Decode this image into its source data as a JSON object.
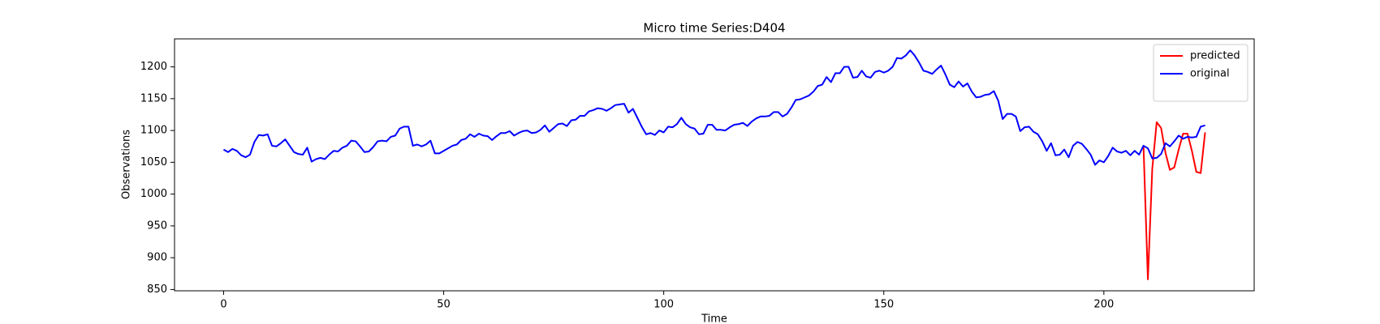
{
  "chart_data": {
    "type": "line",
    "title": "Micro time Series:D404",
    "x_label": "Time",
    "y_label": "Observations",
    "x": [
      0,
      1,
      2,
      3,
      4,
      5,
      6,
      7,
      8,
      9,
      10,
      11,
      12,
      13,
      14,
      15,
      16,
      17,
      18,
      19,
      20,
      21,
      22,
      23,
      24,
      25,
      26,
      27,
      28,
      29,
      30,
      31,
      32,
      33,
      34,
      35,
      36,
      37,
      38,
      39,
      40,
      41,
      42,
      43,
      44,
      45,
      46,
      47,
      48,
      49,
      50,
      51,
      52,
      53,
      54,
      55,
      56,
      57,
      58,
      59,
      60,
      61,
      62,
      63,
      64,
      65,
      66,
      67,
      68,
      69,
      70,
      71,
      72,
      73,
      74,
      75,
      76,
      77,
      78,
      79,
      80,
      81,
      82,
      83,
      84,
      85,
      86,
      87,
      88,
      89,
      90,
      91,
      92,
      93,
      94,
      95,
      96,
      97,
      98,
      99,
      100,
      101,
      102,
      103,
      104,
      105,
      106,
      107,
      108,
      109,
      110,
      111,
      112,
      113,
      114,
      115,
      116,
      117,
      118,
      119,
      120,
      121,
      122,
      123,
      124,
      125,
      126,
      127,
      128,
      129,
      130,
      131,
      132,
      133,
      134,
      135,
      136,
      137,
      138,
      139,
      140,
      141,
      142,
      143,
      144,
      145,
      146,
      147,
      148,
      149,
      150,
      151,
      152,
      153,
      154,
      155,
      156,
      157,
      158,
      159,
      160,
      161,
      162,
      163,
      164,
      165,
      166,
      167,
      168,
      169,
      170,
      171,
      172,
      173,
      174,
      175,
      176,
      177,
      178,
      179,
      180,
      181,
      182,
      183,
      184,
      185,
      186,
      187,
      188,
      189,
      190,
      191,
      192,
      193,
      194,
      195,
      196,
      197,
      198,
      199,
      200,
      201,
      202,
      203,
      204,
      205,
      206,
      207,
      208,
      209,
      210,
      211,
      212,
      213,
      214,
      215,
      216,
      217,
      218,
      219,
      220,
      221,
      222,
      223
    ],
    "series": [
      {
        "name": "predicted",
        "color": "#ff0000",
        "values": [
          null,
          null,
          null,
          null,
          null,
          null,
          null,
          null,
          null,
          null,
          null,
          null,
          null,
          null,
          null,
          null,
          null,
          null,
          null,
          null,
          null,
          null,
          null,
          null,
          null,
          null,
          null,
          null,
          null,
          null,
          null,
          null,
          null,
          null,
          null,
          null,
          null,
          null,
          null,
          null,
          null,
          null,
          null,
          null,
          null,
          null,
          null,
          null,
          null,
          null,
          null,
          null,
          null,
          null,
          null,
          null,
          null,
          null,
          null,
          null,
          null,
          null,
          null,
          null,
          null,
          null,
          null,
          null,
          null,
          null,
          null,
          null,
          null,
          null,
          null,
          null,
          null,
          null,
          null,
          null,
          null,
          null,
          null,
          null,
          null,
          null,
          null,
          null,
          null,
          null,
          null,
          null,
          null,
          null,
          null,
          null,
          null,
          null,
          null,
          null,
          null,
          null,
          null,
          null,
          null,
          null,
          null,
          null,
          null,
          null,
          null,
          null,
          null,
          null,
          null,
          null,
          null,
          null,
          null,
          null,
          null,
          null,
          null,
          null,
          null,
          null,
          null,
          null,
          null,
          null,
          null,
          null,
          null,
          null,
          null,
          null,
          null,
          null,
          null,
          null,
          null,
          null,
          null,
          null,
          null,
          null,
          null,
          null,
          null,
          null,
          null,
          null,
          null,
          null,
          null,
          null,
          null,
          null,
          null,
          null,
          null,
          null,
          null,
          null,
          null,
          null,
          null,
          null,
          null,
          null,
          null,
          null,
          null,
          null,
          null,
          null,
          null,
          null,
          null,
          null,
          null,
          null,
          null,
          null,
          null,
          null,
          null,
          null,
          null,
          null,
          null,
          null,
          null,
          null,
          null,
          null,
          null,
          null,
          null,
          null,
          null,
          null,
          null,
          null,
          null,
          null,
          null,
          null,
          null,
          1076,
          866,
          1040,
          1113,
          1104,
          1065,
          1038,
          1042,
          1070,
          1095,
          1095,
          1068,
          1035,
          1033,
          1097
        ]
      },
      {
        "name": "original",
        "color": "#0000ff",
        "values": [
          1070,
          1066,
          1071,
          1068,
          1061,
          1058,
          1062,
          1082,
          1093,
          1092,
          1094,
          1076,
          1075,
          1080,
          1086,
          1076,
          1066,
          1063,
          1062,
          1073,
          1051,
          1055,
          1057,
          1055,
          1062,
          1068,
          1067,
          1073,
          1076,
          1084,
          1083,
          1075,
          1066,
          1067,
          1074,
          1083,
          1084,
          1083,
          1090,
          1092,
          1103,
          1106,
          1106,
          1076,
          1078,
          1075,
          1078,
          1084,
          1064,
          1064,
          1068,
          1072,
          1076,
          1078,
          1085,
          1087,
          1094,
          1090,
          1095,
          1092,
          1091,
          1085,
          1091,
          1096,
          1096,
          1099,
          1092,
          1096,
          1099,
          1100,
          1096,
          1097,
          1101,
          1108,
          1098,
          1104,
          1110,
          1111,
          1107,
          1116,
          1117,
          1123,
          1123,
          1130,
          1132,
          1135,
          1134,
          1131,
          1135,
          1140,
          1141,
          1142,
          1128,
          1134,
          1120,
          1106,
          1094,
          1096,
          1093,
          1100,
          1097,
          1106,
          1105,
          1110,
          1120,
          1110,
          1105,
          1103,
          1094,
          1095,
          1109,
          1109,
          1101,
          1101,
          1100,
          1105,
          1109,
          1110,
          1112,
          1107,
          1114,
          1119,
          1122,
          1122,
          1123,
          1129,
          1129,
          1122,
          1126,
          1136,
          1148,
          1149,
          1152,
          1155,
          1161,
          1170,
          1172,
          1184,
          1176,
          1190,
          1190,
          1200,
          1200,
          1183,
          1184,
          1194,
          1185,
          1183,
          1192,
          1194,
          1191,
          1194,
          1200,
          1214,
          1213,
          1218,
          1226,
          1218,
          1207,
          1194,
          1192,
          1189,
          1196,
          1202,
          1188,
          1172,
          1168,
          1177,
          1169,
          1174,
          1161,
          1152,
          1153,
          1156,
          1157,
          1162,
          1147,
          1118,
          1126,
          1126,
          1122,
          1099,
          1105,
          1106,
          1098,
          1094,
          1083,
          1068,
          1080,
          1061,
          1062,
          1070,
          1058,
          1076,
          1082,
          1079,
          1071,
          1062,
          1046,
          1053,
          1050,
          1060,
          1073,
          1067,
          1065,
          1068,
          1061,
          1068,
          1062,
          1076,
          1072,
          1056,
          1057,
          1063,
          1080,
          1075,
          1083,
          1092,
          1087,
          1090,
          1089,
          1090,
          1106,
          1108
        ]
      }
    ],
    "xlim": [
      -11.15,
      234.15
    ],
    "ylim": [
      848,
      1244
    ],
    "xticks": [
      0,
      50,
      100,
      150,
      200
    ],
    "yticks": [
      850,
      900,
      950,
      1000,
      1050,
      1100,
      1150,
      1200
    ],
    "grid": false,
    "legend": "upper right"
  }
}
